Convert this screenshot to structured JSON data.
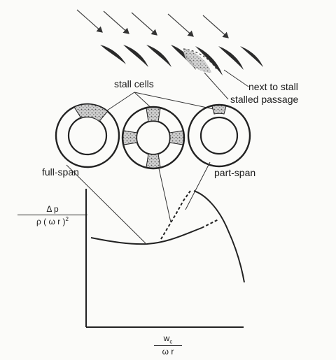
{
  "labels": {
    "stall_cells": "stall cells",
    "next_to_stall": "next to stall",
    "stalled_passage": "stalled passage",
    "full_span": "full-span",
    "part_span": "part-span"
  },
  "y_axis": {
    "numerator": "Δ p",
    "denominator_base": "ρ ( ω r )",
    "denominator_exp": "2"
  },
  "x_axis": {
    "numerator_base": "w",
    "numerator_sub": "c",
    "denominator": "ω r"
  }
}
